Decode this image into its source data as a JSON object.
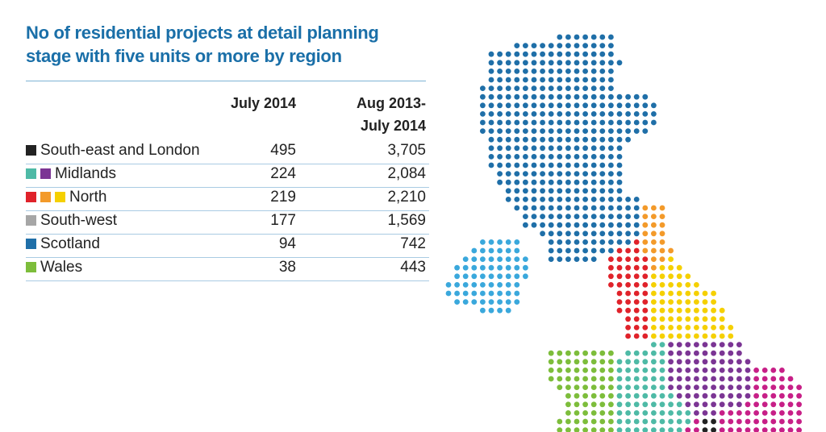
{
  "header": {
    "title": [
      "No of residential projects at detail planning",
      "stage with five units or more by region"
    ]
  },
  "table": {
    "columns": [
      [
        "July 2014"
      ],
      [
        "Aug 2013-",
        "July 2014"
      ]
    ],
    "rows": [
      {
        "region": "South-east and London",
        "swatches": [
          "#222222"
        ],
        "values": [
          "495",
          "3,705"
        ]
      },
      {
        "region": "Midlands",
        "swatches": [
          "#4ebaa6",
          "#7b3594"
        ],
        "values": [
          "224",
          "2,084"
        ]
      },
      {
        "region": "North",
        "swatches": [
          "#e0222a",
          "#f39a2a",
          "#f5d000"
        ],
        "values": [
          "219",
          "2,210"
        ]
      },
      {
        "region": "South-west",
        "swatches": [
          "#a6a6a6"
        ],
        "values": [
          "177",
          "1,569"
        ]
      },
      {
        "region": "Scotland",
        "swatches": [
          "#1f6fa8"
        ],
        "values": [
          "94",
          "742"
        ]
      },
      {
        "region": "Wales",
        "swatches": [
          "#7dbd3b"
        ],
        "values": [
          "38",
          "443"
        ]
      }
    ]
  }
}
